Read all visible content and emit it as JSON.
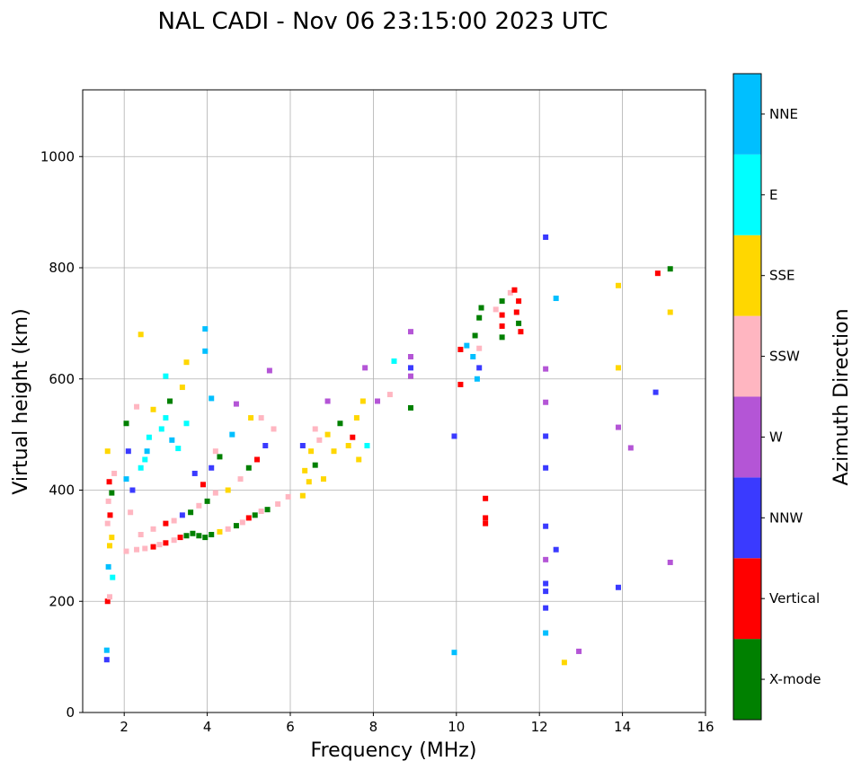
{
  "chart_data": {
    "type": "scatter",
    "title": "NAL CADI - Nov 06 23:15:00 2023 UTC",
    "xlabel": "Frequency (MHz)",
    "ylabel": "Virtual height (km)",
    "xlim": [
      1,
      16
    ],
    "ylim": [
      0,
      1120
    ],
    "xticks": [
      2,
      4,
      6,
      8,
      10,
      12,
      14,
      16
    ],
    "yticks": [
      0,
      200,
      400,
      600,
      800,
      1000
    ],
    "grid": true,
    "colorbar": {
      "title": "Azimuth Direction",
      "categories": [
        {
          "name": "X-mode",
          "color": "#008000"
        },
        {
          "name": "Vertical",
          "color": "#ff0000"
        },
        {
          "name": "NNW",
          "color": "#3a3aff"
        },
        {
          "name": "W",
          "color": "#b455d6"
        },
        {
          "name": "SSW",
          "color": "#ffb6c1"
        },
        {
          "name": "SSE",
          "color": "#ffd700"
        },
        {
          "name": "E",
          "color": "#00ffff"
        },
        {
          "name": "NNE",
          "color": "#00bfff"
        }
      ]
    },
    "points": [
      {
        "f": 1.58,
        "h": 95,
        "c": 2
      },
      {
        "f": 1.58,
        "h": 112,
        "c": 7
      },
      {
        "f": 1.6,
        "h": 200,
        "c": 1
      },
      {
        "f": 1.65,
        "h": 208,
        "c": 4
      },
      {
        "f": 1.72,
        "h": 243,
        "c": 6
      },
      {
        "f": 1.62,
        "h": 262,
        "c": 7
      },
      {
        "f": 1.65,
        "h": 300,
        "c": 5
      },
      {
        "f": 1.7,
        "h": 315,
        "c": 5
      },
      {
        "f": 1.6,
        "h": 340,
        "c": 4
      },
      {
        "f": 1.66,
        "h": 355,
        "c": 1
      },
      {
        "f": 1.62,
        "h": 380,
        "c": 4
      },
      {
        "f": 1.7,
        "h": 395,
        "c": 0
      },
      {
        "f": 1.64,
        "h": 415,
        "c": 1
      },
      {
        "f": 1.76,
        "h": 430,
        "c": 4
      },
      {
        "f": 1.6,
        "h": 470,
        "c": 5
      },
      {
        "f": 2.05,
        "h": 290,
        "c": 4
      },
      {
        "f": 2.3,
        "h": 293,
        "c": 4
      },
      {
        "f": 2.5,
        "h": 295,
        "c": 4
      },
      {
        "f": 2.7,
        "h": 298,
        "c": 1
      },
      {
        "f": 2.85,
        "h": 302,
        "c": 4
      },
      {
        "f": 3.0,
        "h": 305,
        "c": 1
      },
      {
        "f": 3.2,
        "h": 310,
        "c": 4
      },
      {
        "f": 3.35,
        "h": 315,
        "c": 1
      },
      {
        "f": 3.5,
        "h": 318,
        "c": 0
      },
      {
        "f": 3.65,
        "h": 322,
        "c": 0
      },
      {
        "f": 3.8,
        "h": 318,
        "c": 0
      },
      {
        "f": 3.95,
        "h": 315,
        "c": 0
      },
      {
        "f": 4.1,
        "h": 320,
        "c": 0
      },
      {
        "f": 4.3,
        "h": 325,
        "c": 5
      },
      {
        "f": 4.5,
        "h": 330,
        "c": 4
      },
      {
        "f": 4.7,
        "h": 336,
        "c": 0
      },
      {
        "f": 4.85,
        "h": 342,
        "c": 4
      },
      {
        "f": 5.0,
        "h": 350,
        "c": 1
      },
      {
        "f": 5.15,
        "h": 355,
        "c": 0
      },
      {
        "f": 5.3,
        "h": 362,
        "c": 4
      },
      {
        "f": 5.45,
        "h": 365,
        "c": 0
      },
      {
        "f": 5.7,
        "h": 375,
        "c": 4
      },
      {
        "f": 5.95,
        "h": 388,
        "c": 4
      },
      {
        "f": 2.4,
        "h": 320,
        "c": 4
      },
      {
        "f": 2.7,
        "h": 330,
        "c": 4
      },
      {
        "f": 3.0,
        "h": 340,
        "c": 1
      },
      {
        "f": 3.2,
        "h": 345,
        "c": 4
      },
      {
        "f": 3.4,
        "h": 355,
        "c": 2
      },
      {
        "f": 3.6,
        "h": 360,
        "c": 0
      },
      {
        "f": 3.8,
        "h": 372,
        "c": 4
      },
      {
        "f": 4.0,
        "h": 380,
        "c": 0
      },
      {
        "f": 4.2,
        "h": 395,
        "c": 4
      },
      {
        "f": 4.5,
        "h": 400,
        "c": 5
      },
      {
        "f": 4.8,
        "h": 420,
        "c": 4
      },
      {
        "f": 5.0,
        "h": 440,
        "c": 0
      },
      {
        "f": 5.2,
        "h": 455,
        "c": 1
      },
      {
        "f": 5.4,
        "h": 480,
        "c": 2
      },
      {
        "f": 5.6,
        "h": 510,
        "c": 4
      },
      {
        "f": 4.1,
        "h": 440,
        "c": 2
      },
      {
        "f": 4.3,
        "h": 460,
        "c": 0
      },
      {
        "f": 3.9,
        "h": 410,
        "c": 1
      },
      {
        "f": 3.7,
        "h": 430,
        "c": 2
      },
      {
        "f": 4.2,
        "h": 470,
        "c": 4
      },
      {
        "f": 4.6,
        "h": 500,
        "c": 7
      },
      {
        "f": 5.3,
        "h": 530,
        "c": 4
      },
      {
        "f": 5.05,
        "h": 530,
        "c": 5
      },
      {
        "f": 2.05,
        "h": 420,
        "c": 7
      },
      {
        "f": 2.1,
        "h": 470,
        "c": 2
      },
      {
        "f": 2.2,
        "h": 400,
        "c": 2
      },
      {
        "f": 2.15,
        "h": 360,
        "c": 4
      },
      {
        "f": 2.05,
        "h": 520,
        "c": 0
      },
      {
        "f": 2.4,
        "h": 440,
        "c": 6
      },
      {
        "f": 2.5,
        "h": 455,
        "c": 6
      },
      {
        "f": 2.55,
        "h": 470,
        "c": 7
      },
      {
        "f": 2.6,
        "h": 495,
        "c": 6
      },
      {
        "f": 2.9,
        "h": 510,
        "c": 6
      },
      {
        "f": 3.0,
        "h": 530,
        "c": 6
      },
      {
        "f": 3.15,
        "h": 490,
        "c": 7
      },
      {
        "f": 3.3,
        "h": 475,
        "c": 6
      },
      {
        "f": 3.5,
        "h": 520,
        "c": 6
      },
      {
        "f": 3.1,
        "h": 560,
        "c": 0
      },
      {
        "f": 2.7,
        "h": 545,
        "c": 5
      },
      {
        "f": 2.3,
        "h": 550,
        "c": 4
      },
      {
        "f": 3.4,
        "h": 585,
        "c": 5
      },
      {
        "f": 3.0,
        "h": 605,
        "c": 6
      },
      {
        "f": 3.5,
        "h": 630,
        "c": 5
      },
      {
        "f": 3.95,
        "h": 650,
        "c": 7
      },
      {
        "f": 3.95,
        "h": 690,
        "c": 7
      },
      {
        "f": 4.1,
        "h": 565,
        "c": 7
      },
      {
        "f": 4.7,
        "h": 555,
        "c": 3
      },
      {
        "f": 2.4,
        "h": 680,
        "c": 5
      },
      {
        "f": 5.5,
        "h": 615,
        "c": 3
      },
      {
        "f": 6.3,
        "h": 390,
        "c": 5
      },
      {
        "f": 6.45,
        "h": 415,
        "c": 5
      },
      {
        "f": 6.35,
        "h": 435,
        "c": 5
      },
      {
        "f": 6.6,
        "h": 445,
        "c": 0
      },
      {
        "f": 6.8,
        "h": 420,
        "c": 5
      },
      {
        "f": 6.5,
        "h": 470,
        "c": 5
      },
      {
        "f": 6.3,
        "h": 480,
        "c": 2
      },
      {
        "f": 6.7,
        "h": 490,
        "c": 4
      },
      {
        "f": 6.9,
        "h": 500,
        "c": 5
      },
      {
        "f": 7.05,
        "h": 470,
        "c": 5
      },
      {
        "f": 7.2,
        "h": 520,
        "c": 0
      },
      {
        "f": 7.4,
        "h": 480,
        "c": 5
      },
      {
        "f": 7.5,
        "h": 495,
        "c": 1
      },
      {
        "f": 7.6,
        "h": 530,
        "c": 5
      },
      {
        "f": 7.75,
        "h": 560,
        "c": 5
      },
      {
        "f": 7.85,
        "h": 480,
        "c": 6
      },
      {
        "f": 7.65,
        "h": 455,
        "c": 5
      },
      {
        "f": 6.6,
        "h": 510,
        "c": 4
      },
      {
        "f": 6.9,
        "h": 560,
        "c": 3
      },
      {
        "f": 8.1,
        "h": 560,
        "c": 3
      },
      {
        "f": 8.4,
        "h": 572,
        "c": 4
      },
      {
        "f": 8.5,
        "h": 632,
        "c": 6
      },
      {
        "f": 8.9,
        "h": 605,
        "c": 3
      },
      {
        "f": 8.9,
        "h": 620,
        "c": 2
      },
      {
        "f": 8.9,
        "h": 640,
        "c": 3
      },
      {
        "f": 8.9,
        "h": 685,
        "c": 3
      },
      {
        "f": 8.9,
        "h": 548,
        "c": 0
      },
      {
        "f": 7.8,
        "h": 620,
        "c": 3
      },
      {
        "f": 9.95,
        "h": 497,
        "c": 2
      },
      {
        "f": 10.1,
        "h": 590,
        "c": 1
      },
      {
        "f": 10.1,
        "h": 653,
        "c": 1
      },
      {
        "f": 10.25,
        "h": 660,
        "c": 7
      },
      {
        "f": 10.4,
        "h": 640,
        "c": 7
      },
      {
        "f": 10.5,
        "h": 600,
        "c": 7
      },
      {
        "f": 10.55,
        "h": 620,
        "c": 2
      },
      {
        "f": 10.45,
        "h": 678,
        "c": 0
      },
      {
        "f": 10.55,
        "h": 710,
        "c": 0
      },
      {
        "f": 10.6,
        "h": 728,
        "c": 0
      },
      {
        "f": 10.55,
        "h": 655,
        "c": 4
      },
      {
        "f": 10.7,
        "h": 385,
        "c": 1
      },
      {
        "f": 10.7,
        "h": 350,
        "c": 1
      },
      {
        "f": 10.7,
        "h": 340,
        "c": 1
      },
      {
        "f": 9.95,
        "h": 108,
        "c": 7
      },
      {
        "f": 10.95,
        "h": 725,
        "c": 4
      },
      {
        "f": 11.1,
        "h": 740,
        "c": 0
      },
      {
        "f": 11.1,
        "h": 695,
        "c": 1
      },
      {
        "f": 11.1,
        "h": 675,
        "c": 0
      },
      {
        "f": 11.1,
        "h": 715,
        "c": 1
      },
      {
        "f": 11.3,
        "h": 755,
        "c": 4
      },
      {
        "f": 11.4,
        "h": 760,
        "c": 1
      },
      {
        "f": 11.45,
        "h": 720,
        "c": 1
      },
      {
        "f": 11.5,
        "h": 700,
        "c": 0
      },
      {
        "f": 11.5,
        "h": 740,
        "c": 1
      },
      {
        "f": 11.55,
        "h": 685,
        "c": 1
      },
      {
        "f": 12.15,
        "h": 855,
        "c": 2
      },
      {
        "f": 12.15,
        "h": 618,
        "c": 3
      },
      {
        "f": 12.15,
        "h": 558,
        "c": 3
      },
      {
        "f": 12.15,
        "h": 497,
        "c": 2
      },
      {
        "f": 12.15,
        "h": 440,
        "c": 2
      },
      {
        "f": 12.15,
        "h": 335,
        "c": 2
      },
      {
        "f": 12.15,
        "h": 275,
        "c": 3
      },
      {
        "f": 12.15,
        "h": 232,
        "c": 2
      },
      {
        "f": 12.15,
        "h": 218,
        "c": 2
      },
      {
        "f": 12.15,
        "h": 188,
        "c": 2
      },
      {
        "f": 12.15,
        "h": 143,
        "c": 7
      },
      {
        "f": 12.4,
        "h": 745,
        "c": 7
      },
      {
        "f": 12.4,
        "h": 293,
        "c": 2
      },
      {
        "f": 12.6,
        "h": 90,
        "c": 5
      },
      {
        "f": 12.95,
        "h": 110,
        "c": 3
      },
      {
        "f": 13.9,
        "h": 768,
        "c": 5
      },
      {
        "f": 13.9,
        "h": 620,
        "c": 5
      },
      {
        "f": 13.9,
        "h": 513,
        "c": 3
      },
      {
        "f": 13.9,
        "h": 225,
        "c": 2
      },
      {
        "f": 14.2,
        "h": 476,
        "c": 3
      },
      {
        "f": 14.8,
        "h": 576,
        "c": 2
      },
      {
        "f": 14.85,
        "h": 790,
        "c": 1
      },
      {
        "f": 15.15,
        "h": 798,
        "c": 0
      },
      {
        "f": 15.15,
        "h": 720,
        "c": 5
      },
      {
        "f": 15.15,
        "h": 270,
        "c": 3
      }
    ]
  }
}
